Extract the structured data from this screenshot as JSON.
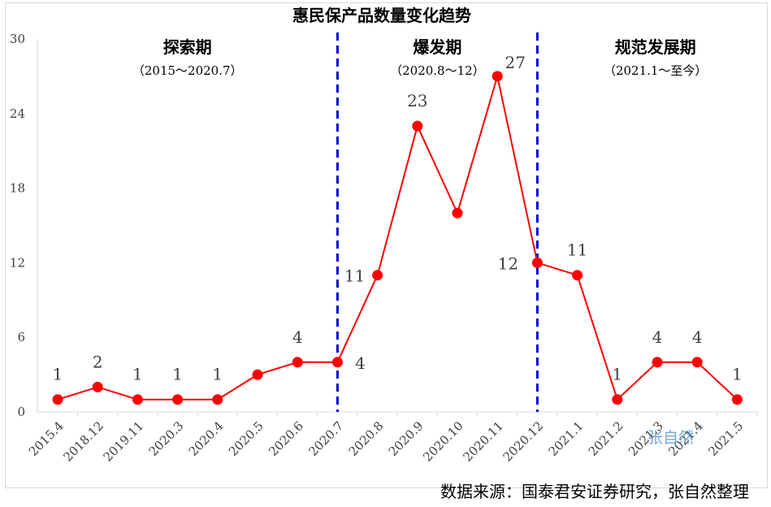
{
  "chart_data": {
    "type": "line",
    "title": "惠民保产品数量变化趋势",
    "categories": [
      "2015.4",
      "2018.12",
      "2019.11",
      "2020.3",
      "2020.4",
      "2020.5",
      "2020.6",
      "2020.7",
      "2020.8",
      "2020.9",
      "2020.10",
      "2020.11",
      "2020.12",
      "2021.1",
      "2021.2",
      "2021.3",
      "2021.4",
      "2021.5"
    ],
    "values": [
      1,
      2,
      1,
      1,
      1,
      3,
      4,
      4,
      11,
      23,
      16,
      27,
      12,
      11,
      1,
      4,
      4,
      1
    ],
    "data_labels": [
      "1",
      "2",
      "1",
      "1",
      "1",
      null,
      "4",
      "4",
      "11",
      "23",
      null,
      "27",
      "12",
      "11",
      "1",
      "4",
      "4",
      "1"
    ],
    "ylim": [
      0,
      30
    ],
    "yticks": [
      0,
      6,
      12,
      18,
      24,
      30
    ],
    "grid": false,
    "series_color": "#ff0000",
    "divider_color": "#0000cc",
    "dividers_after_category": [
      "2020.7",
      "2020.12"
    ],
    "phases": [
      {
        "name": "探索期",
        "range": "（2015～2020.7）"
      },
      {
        "name": "爆发期",
        "range": "（2020.8～12）"
      },
      {
        "name": "规范发展期",
        "range": "（2021.1～至今）"
      }
    ]
  },
  "watermark": "张自然",
  "source": "数据来源：国泰君安证券研究，张自然整理"
}
